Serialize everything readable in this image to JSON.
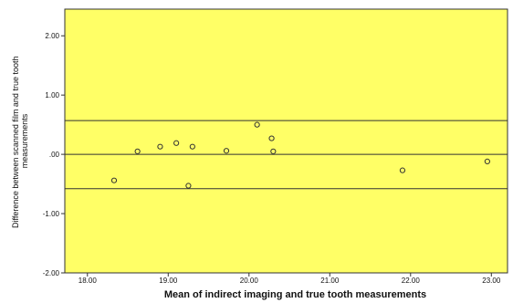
{
  "chart_data": {
    "type": "scatter",
    "title": "",
    "xlabel": "Mean of indirect imaging and true tooth measurements",
    "ylabel_lines": [
      "Difference between scanned film and true tooth",
      "measurements"
    ],
    "xlim": [
      17.72,
      23.2
    ],
    "ylim": [
      -2.0,
      2.45
    ],
    "x_ticks": [
      18.0,
      19.0,
      20.0,
      21.0,
      22.0,
      23.0
    ],
    "x_tick_labels": [
      "18.00",
      "19.00",
      "20.00",
      "21.00",
      "22.00",
      "23.00"
    ],
    "y_ticks": [
      2.0,
      1.0,
      0.0,
      -1.0,
      -2.0
    ],
    "y_tick_labels": [
      "2.00",
      "1.00",
      ".00",
      "-1.00",
      "-2.00"
    ],
    "reference_lines": [
      0.57,
      0.0,
      -0.58
    ],
    "points": [
      {
        "x": 18.33,
        "y": -0.44
      },
      {
        "x": 18.62,
        "y": 0.05
      },
      {
        "x": 18.9,
        "y": 0.13
      },
      {
        "x": 19.1,
        "y": 0.19
      },
      {
        "x": 19.25,
        "y": -0.53
      },
      {
        "x": 19.3,
        "y": 0.13
      },
      {
        "x": 19.72,
        "y": 0.06
      },
      {
        "x": 20.1,
        "y": 0.5
      },
      {
        "x": 20.28,
        "y": 0.27
      },
      {
        "x": 20.3,
        "y": 0.05
      },
      {
        "x": 21.9,
        "y": -0.27
      },
      {
        "x": 22.95,
        "y": -0.12
      }
    ],
    "grid": false,
    "colors": {
      "plot_background": "#FFFF66",
      "outer_background": "#FFFFFF",
      "lines": "#333333",
      "markers": "#333333"
    }
  }
}
